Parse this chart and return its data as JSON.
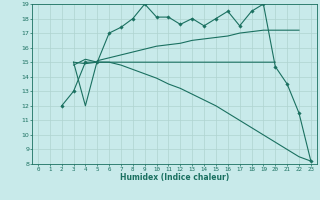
{
  "bg_color": "#c8eaea",
  "grid_color": "#afd4d0",
  "line_color": "#1a7060",
  "xlabel": "Humidex (Indice chaleur)",
  "xlim": [
    -0.5,
    23.5
  ],
  "ylim": [
    8,
    19
  ],
  "xticks": [
    0,
    1,
    2,
    3,
    4,
    5,
    6,
    7,
    8,
    9,
    10,
    11,
    12,
    13,
    14,
    15,
    16,
    17,
    18,
    19,
    20,
    21,
    22,
    23
  ],
  "yticks": [
    8,
    9,
    10,
    11,
    12,
    13,
    14,
    15,
    16,
    17,
    18,
    19
  ],
  "line_zigzag": {
    "x": [
      2,
      3,
      4,
      5,
      6,
      7,
      8,
      9,
      10,
      11,
      12,
      13,
      14,
      15,
      16,
      17,
      18,
      19,
      20,
      21,
      22,
      23
    ],
    "y": [
      12,
      13,
      15,
      15,
      17,
      17.4,
      18.0,
      19.0,
      18.1,
      18.1,
      17.6,
      18.0,
      17.5,
      18.0,
      18.5,
      17.5,
      18.5,
      19.0,
      14.7,
      13.5,
      11.5,
      8.2
    ]
  },
  "line_flat": {
    "x": [
      3,
      4,
      5,
      6,
      7,
      8,
      9,
      10,
      11,
      12,
      13,
      14,
      15,
      16,
      17,
      18,
      19,
      20
    ],
    "y": [
      15.0,
      14.9,
      15.0,
      15.0,
      15.0,
      15.0,
      15.0,
      15.0,
      15.0,
      15.0,
      15.0,
      15.0,
      15.0,
      15.0,
      15.0,
      15.0,
      15.0,
      15.0
    ]
  },
  "line_rise": {
    "x": [
      3,
      4,
      5,
      6,
      7,
      8,
      9,
      10,
      11,
      12,
      13,
      14,
      15,
      16,
      17,
      18,
      19,
      20,
      21,
      22
    ],
    "y": [
      15.0,
      12.0,
      15.1,
      15.3,
      15.5,
      15.7,
      15.9,
      16.1,
      16.2,
      16.3,
      16.5,
      16.6,
      16.7,
      16.8,
      17.0,
      17.1,
      17.2,
      17.2,
      17.2,
      17.2
    ]
  },
  "line_fall": {
    "x": [
      3,
      4,
      5,
      6,
      7,
      8,
      9,
      10,
      11,
      12,
      13,
      14,
      15,
      16,
      17,
      18,
      19,
      20,
      21,
      22,
      23
    ],
    "y": [
      14.8,
      15.2,
      15.0,
      15.0,
      14.8,
      14.5,
      14.2,
      13.9,
      13.5,
      13.2,
      12.8,
      12.4,
      12.0,
      11.5,
      11.0,
      10.5,
      10.0,
      9.5,
      9.0,
      8.5,
      8.2
    ]
  }
}
